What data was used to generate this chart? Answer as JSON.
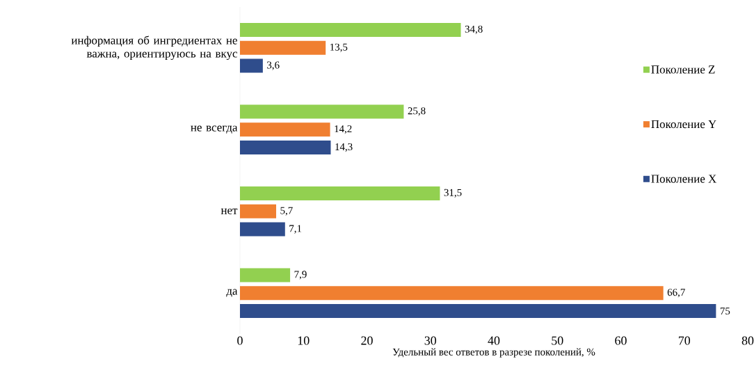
{
  "chart_data": {
    "type": "bar",
    "orientation": "horizontal",
    "categories": [
      "информация об ингредиентах не важна, ориентируюсь на вкус",
      "не всегда",
      "нет",
      "да"
    ],
    "series": [
      {
        "name": "Поколение  Z",
        "color": "#92d050",
        "values": [
          34.8,
          25.8,
          31.5,
          7.9
        ],
        "value_labels": [
          "34,8",
          "25,8",
          "31,5",
          "7,9"
        ]
      },
      {
        "name": "Поколение  Y",
        "color": "#f07f30",
        "values": [
          13.5,
          14.2,
          5.7,
          66.7
        ],
        "value_labels": [
          "13,5",
          "14,2",
          "5,7",
          "66,7"
        ]
      },
      {
        "name": "Поколение X",
        "color": "#2f4d8c",
        "values": [
          3.6,
          14.3,
          7.1,
          75
        ],
        "value_labels": [
          "3,6",
          "14,3",
          "7,1",
          "75"
        ]
      }
    ],
    "xlabel": "Удельный вес ответов в разрезе поколений,  %",
    "xlim": [
      0,
      80
    ],
    "xticks": [
      0,
      10,
      20,
      30,
      40,
      50,
      60,
      70,
      80
    ],
    "grid": false,
    "legend": "right"
  }
}
